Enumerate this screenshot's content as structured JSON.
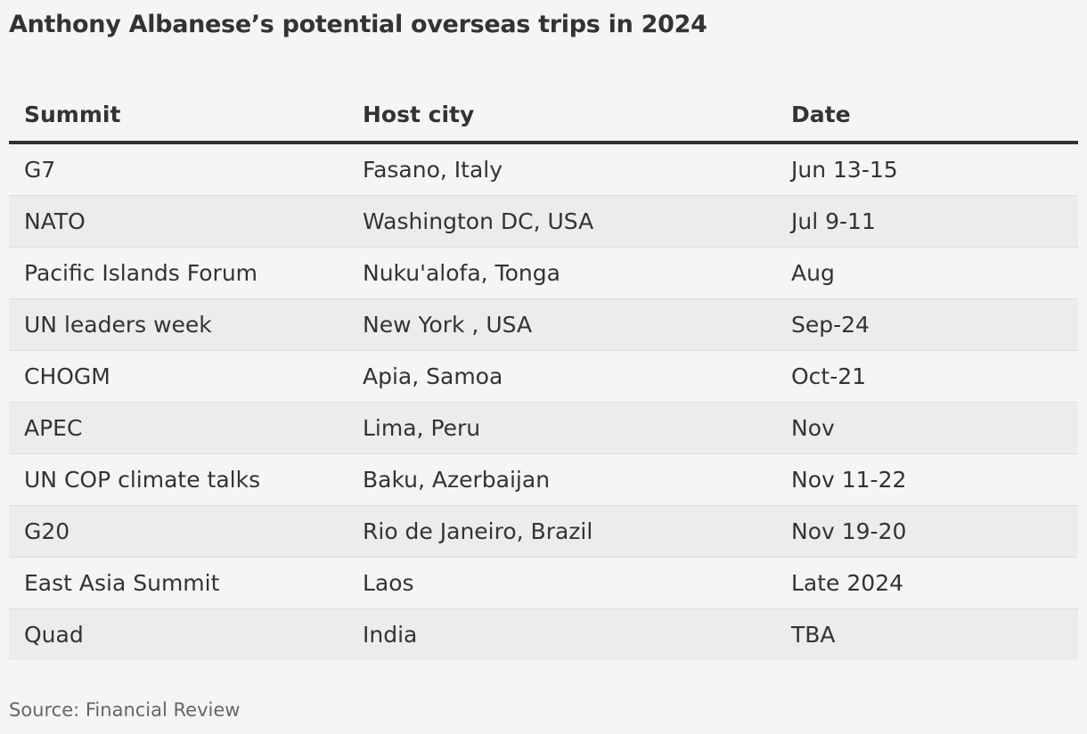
{
  "header": {
    "title": "Anthony Albanese’s potential overseas trips in 2024"
  },
  "table": {
    "columns": [
      "Summit",
      "Host city",
      "Date"
    ],
    "rows": [
      [
        "G7",
        "Fasano, Italy",
        "Jun 13-15"
      ],
      [
        "NATO",
        "Washington DC, USA",
        "Jul 9-11"
      ],
      [
        "Pacific Islands Forum",
        "Nuku'alofa, Tonga",
        "Aug"
      ],
      [
        "UN leaders week",
        "New York , USA",
        "Sep-24"
      ],
      [
        "CHOGM",
        "Apia, Samoa",
        "Oct-21"
      ],
      [
        "APEC",
        "Lima, Peru",
        "Nov"
      ],
      [
        "UN COP climate talks",
        "Baku, Azerbaijan",
        "Nov 11-22"
      ],
      [
        "G20",
        "Rio de Janeiro, Brazil",
        "Nov 19-20"
      ],
      [
        "East Asia Summit",
        "Laos",
        "Late 2024"
      ],
      [
        "Quad",
        "India",
        "TBA"
      ]
    ]
  },
  "footer": {
    "source": "Source: Financial Review"
  }
}
